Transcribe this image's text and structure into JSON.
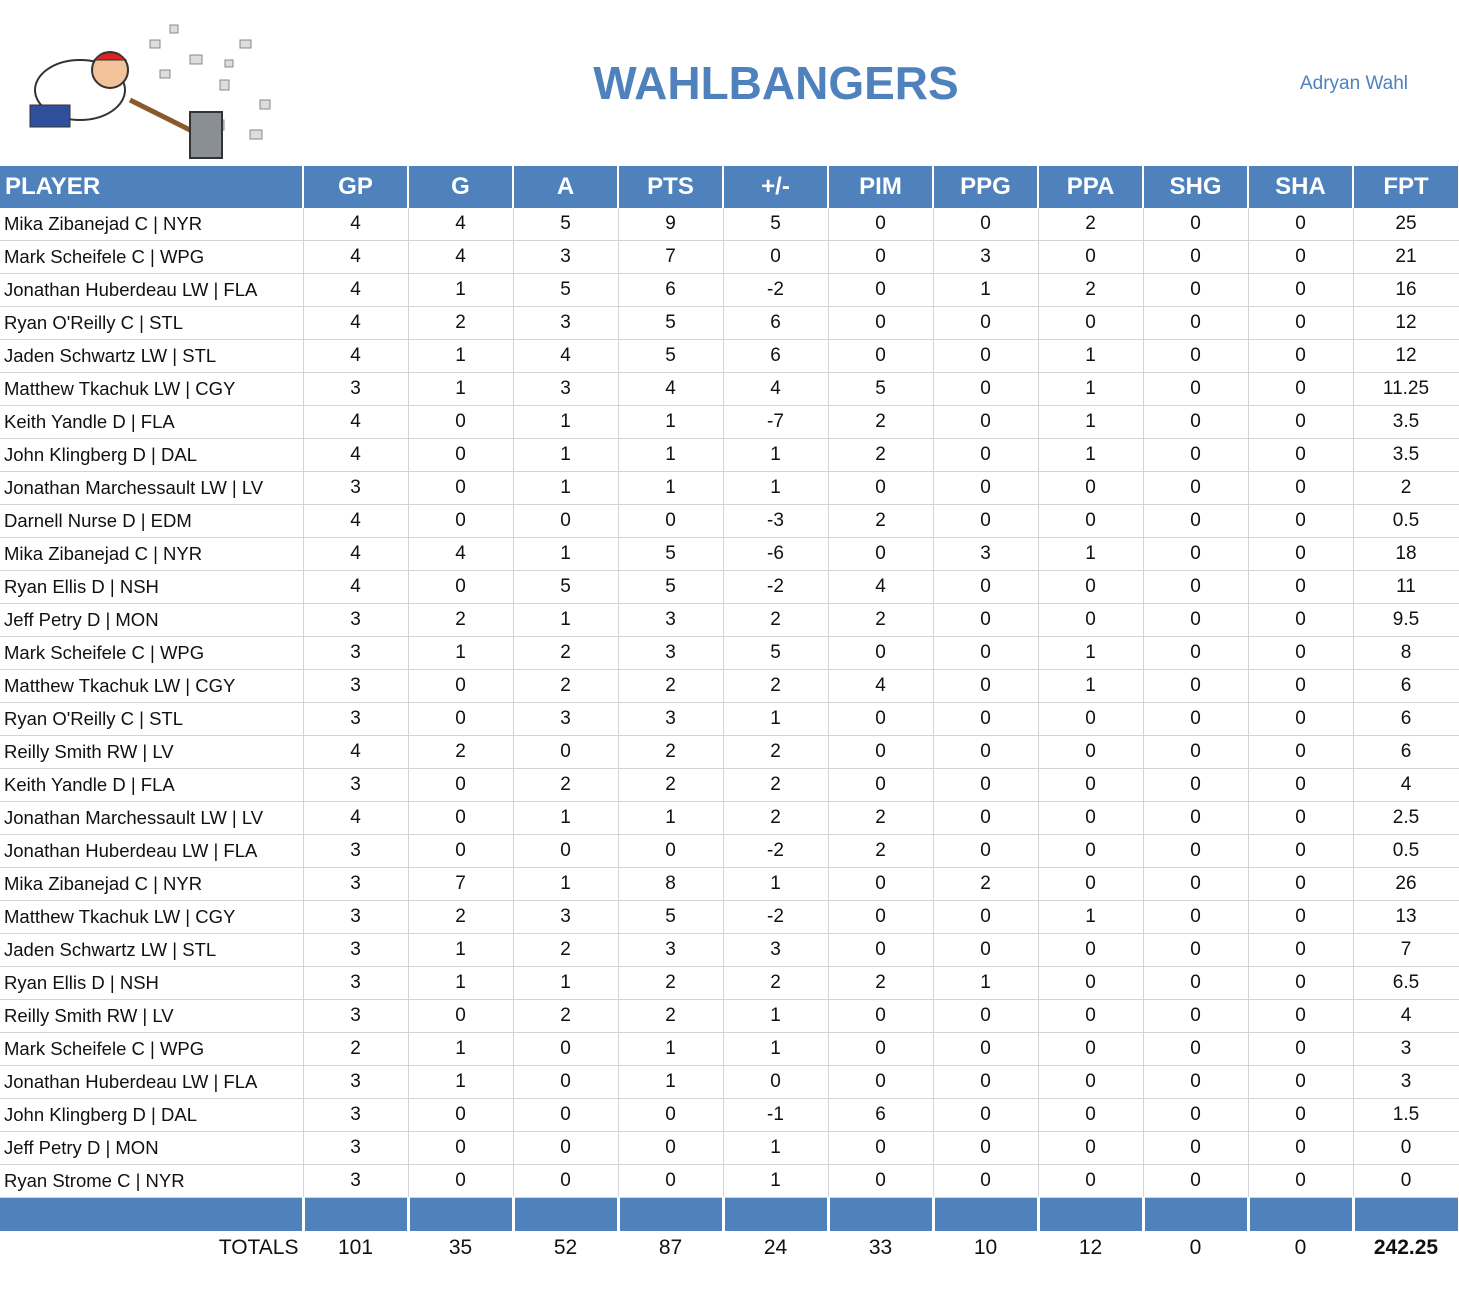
{
  "header": {
    "title": "WAHLBANGERS",
    "owner": "Adryan Wahl"
  },
  "table": {
    "columns": [
      "PLAYER",
      "GP",
      "G",
      "A",
      "PTS",
      "+/-",
      "PIM",
      "PPG",
      "PPA",
      "SHG",
      "SHA",
      "FPT"
    ],
    "rows": [
      [
        "Mika Zibanejad C | NYR",
        4,
        4,
        5,
        9,
        5,
        0,
        0,
        2,
        0,
        0,
        25
      ],
      [
        "Mark Scheifele C | WPG",
        4,
        4,
        3,
        7,
        0,
        0,
        3,
        0,
        0,
        0,
        21
      ],
      [
        "Jonathan Huberdeau LW | FLA",
        4,
        1,
        5,
        6,
        -2,
        0,
        1,
        2,
        0,
        0,
        16
      ],
      [
        "Ryan O'Reilly C | STL",
        4,
        2,
        3,
        5,
        6,
        0,
        0,
        0,
        0,
        0,
        12
      ],
      [
        "Jaden Schwartz LW | STL",
        4,
        1,
        4,
        5,
        6,
        0,
        0,
        1,
        0,
        0,
        12
      ],
      [
        "Matthew Tkachuk LW | CGY",
        3,
        1,
        3,
        4,
        4,
        5,
        0,
        1,
        0,
        0,
        11.25
      ],
      [
        "Keith Yandle D | FLA",
        4,
        0,
        1,
        1,
        -7,
        2,
        0,
        1,
        0,
        0,
        3.5
      ],
      [
        "John Klingberg D | DAL",
        4,
        0,
        1,
        1,
        1,
        2,
        0,
        1,
        0,
        0,
        3.5
      ],
      [
        "Jonathan Marchessault LW | LV",
        3,
        0,
        1,
        1,
        1,
        0,
        0,
        0,
        0,
        0,
        2
      ],
      [
        "Darnell Nurse D | EDM",
        4,
        0,
        0,
        0,
        -3,
        2,
        0,
        0,
        0,
        0,
        0.5
      ],
      [
        "Mika Zibanejad C | NYR",
        4,
        4,
        1,
        5,
        -6,
        0,
        3,
        1,
        0,
        0,
        18
      ],
      [
        "Ryan Ellis D | NSH",
        4,
        0,
        5,
        5,
        -2,
        4,
        0,
        0,
        0,
        0,
        11
      ],
      [
        "Jeff Petry D | MON",
        3,
        2,
        1,
        3,
        2,
        2,
        0,
        0,
        0,
        0,
        9.5
      ],
      [
        "Mark Scheifele C | WPG",
        3,
        1,
        2,
        3,
        5,
        0,
        0,
        1,
        0,
        0,
        8
      ],
      [
        "Matthew Tkachuk LW | CGY",
        3,
        0,
        2,
        2,
        2,
        4,
        0,
        1,
        0,
        0,
        6
      ],
      [
        "Ryan O'Reilly C | STL",
        3,
        0,
        3,
        3,
        1,
        0,
        0,
        0,
        0,
        0,
        6
      ],
      [
        "Reilly Smith RW | LV",
        4,
        2,
        0,
        2,
        2,
        0,
        0,
        0,
        0,
        0,
        6
      ],
      [
        "Keith Yandle D | FLA",
        3,
        0,
        2,
        2,
        2,
        0,
        0,
        0,
        0,
        0,
        4
      ],
      [
        "Jonathan Marchessault LW | LV",
        4,
        0,
        1,
        1,
        2,
        2,
        0,
        0,
        0,
        0,
        2.5
      ],
      [
        "Jonathan Huberdeau LW | FLA",
        3,
        0,
        0,
        0,
        -2,
        2,
        0,
        0,
        0,
        0,
        0.5
      ],
      [
        "Mika Zibanejad C | NYR",
        3,
        7,
        1,
        8,
        1,
        0,
        2,
        0,
        0,
        0,
        26
      ],
      [
        "Matthew Tkachuk LW | CGY",
        3,
        2,
        3,
        5,
        -2,
        0,
        0,
        1,
        0,
        0,
        13
      ],
      [
        "Jaden Schwartz LW | STL",
        3,
        1,
        2,
        3,
        3,
        0,
        0,
        0,
        0,
        0,
        7
      ],
      [
        "Ryan Ellis D | NSH",
        3,
        1,
        1,
        2,
        2,
        2,
        1,
        0,
        0,
        0,
        6.5
      ],
      [
        "Reilly Smith RW | LV",
        3,
        0,
        2,
        2,
        1,
        0,
        0,
        0,
        0,
        0,
        4
      ],
      [
        "Mark Scheifele C | WPG",
        2,
        1,
        0,
        1,
        1,
        0,
        0,
        0,
        0,
        0,
        3
      ],
      [
        "Jonathan Huberdeau LW | FLA",
        3,
        1,
        0,
        1,
        0,
        0,
        0,
        0,
        0,
        0,
        3
      ],
      [
        "John Klingberg D | DAL",
        3,
        0,
        0,
        0,
        -1,
        6,
        0,
        0,
        0,
        0,
        1.5
      ],
      [
        "Jeff Petry D | MON",
        3,
        0,
        0,
        0,
        1,
        0,
        0,
        0,
        0,
        0,
        0
      ],
      [
        "Ryan Strome C | NYR",
        3,
        0,
        0,
        0,
        1,
        0,
        0,
        0,
        0,
        0,
        0
      ]
    ],
    "totals": {
      "label": "TOTALS",
      "values": [
        101,
        35,
        52,
        87,
        24,
        33,
        10,
        12,
        0,
        0,
        242.25
      ]
    }
  }
}
